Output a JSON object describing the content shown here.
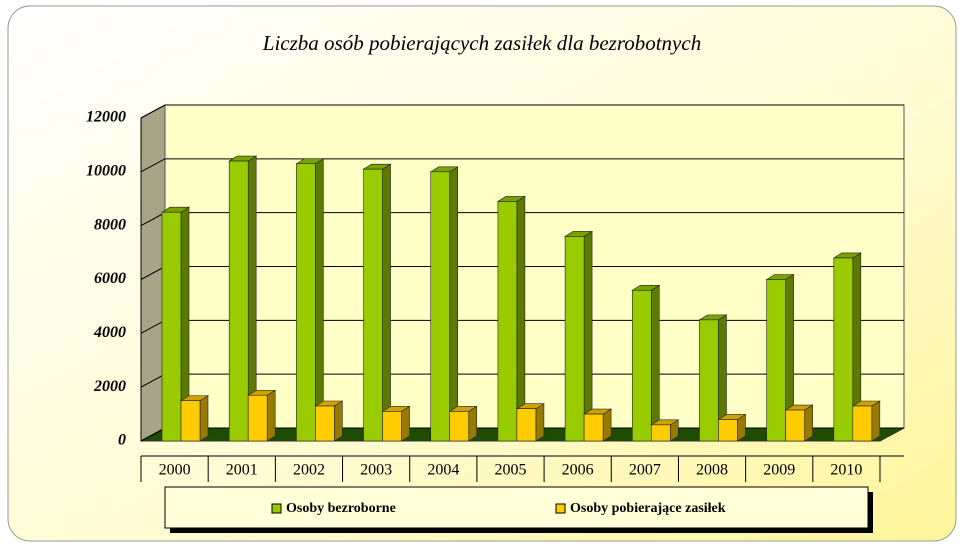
{
  "chart_data": {
    "type": "bar3d",
    "title": "Liczba osób pobierających zasiłek dla bezrobotnych",
    "categories": [
      "2000",
      "2001",
      "2002",
      "2003",
      "2004",
      "2005",
      "2006",
      "2007",
      "2008",
      "2009",
      "2010"
    ],
    "series": [
      {
        "name": "Osoby bezroborne",
        "color": "#99cc00",
        "values": [
          8500,
          10400,
          10300,
          10100,
          10000,
          8900,
          7600,
          5600,
          4500,
          6000,
          6800
        ]
      },
      {
        "name": "Osoby pobierające zasiłek",
        "color": "#ffcc00",
        "values": [
          1500,
          1700,
          1300,
          1100,
          1100,
          1200,
          1000,
          600,
          800,
          1150,
          1300
        ]
      }
    ],
    "ylim": [
      0,
      12000
    ],
    "yticks": [
      0,
      2000,
      4000,
      6000,
      8000,
      10000,
      12000
    ],
    "grid": true,
    "legend": "bottom"
  }
}
